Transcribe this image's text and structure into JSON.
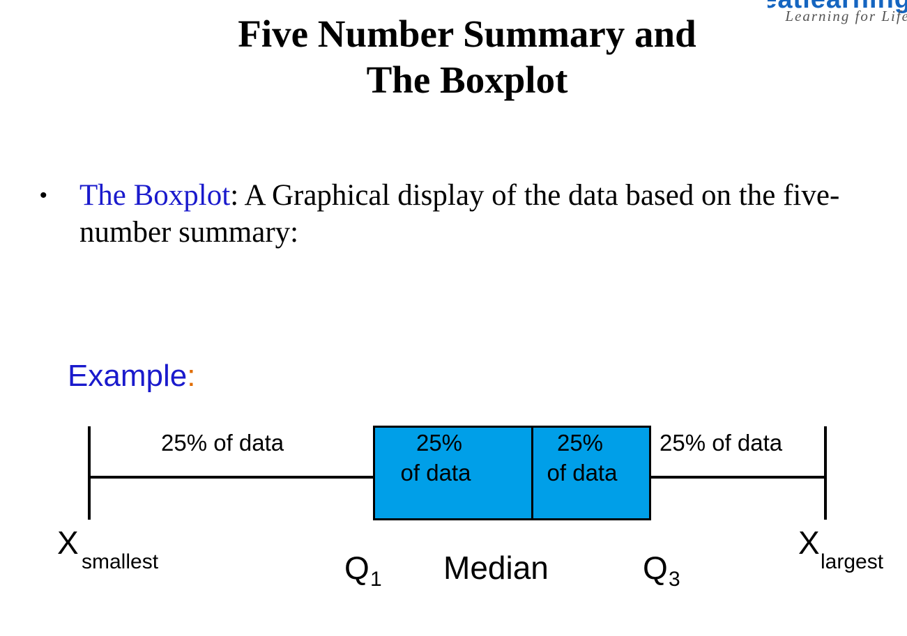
{
  "logo": {
    "word": "greatlearning",
    "tagline": "Learning for Life"
  },
  "title": {
    "line1": "Five Number Summary and",
    "line2": "The Boxplot"
  },
  "bullet": {
    "term": "The Boxplot",
    "sep": ": ",
    "text": "A Graphical display of the data based on the five-number summary:"
  },
  "example": {
    "label": "Example",
    "colon": ":"
  },
  "colors": {
    "box_fill": "#009fe8",
    "term": "#1a1acc",
    "colon": "#e06c00"
  },
  "boxplot": {
    "segment_left": "25% of data",
    "box_left": {
      "line1": "25%",
      "line2": "of data"
    },
    "box_right": {
      "line1": "25%",
      "line2": "of data"
    },
    "segment_right": "25% of data",
    "labels": {
      "x_smallest": {
        "main": "X",
        "sub": "smallest"
      },
      "q1": {
        "main": "Q",
        "sub": "1"
      },
      "median": "Median",
      "q3": {
        "main": "Q",
        "sub": "3"
      },
      "x_largest": {
        "main": "X",
        "sub": "largest"
      }
    }
  }
}
